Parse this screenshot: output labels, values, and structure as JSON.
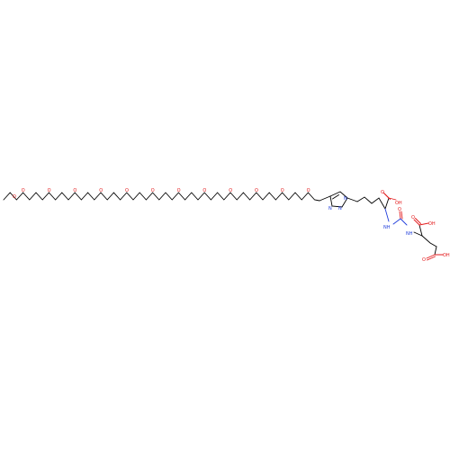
{
  "atom_labels": {
    "methoxy_o": "O",
    "ether_o": "O",
    "triazole_n": "N",
    "nh": "NH",
    "carbonyl_o": "O",
    "oh": "OH",
    "cooh": "OH"
  },
  "colors": {
    "bond": "#000000",
    "oxygen": "#e31a1c",
    "nitrogen": "#1f3ddb",
    "background": "#ffffff"
  }
}
